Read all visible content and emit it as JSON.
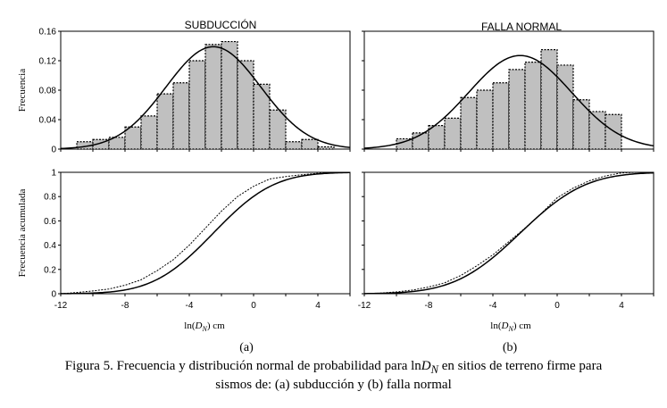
{
  "chart_data": [
    {
      "type": "bar",
      "panel": "a-top",
      "title": "SUBDUCCIÓN",
      "ylabel": "Frecuencia",
      "xlim": [
        -12,
        6
      ],
      "ylim": [
        0,
        0.16
      ],
      "yticks": [
        "0",
        "0.04",
        "0.08",
        "0.12",
        "0.16"
      ],
      "bin_left_edges": [
        -11,
        -10,
        -9,
        -8,
        -7,
        -6,
        -5,
        -4,
        -3,
        -2,
        -1,
        0,
        1,
        2,
        3,
        4
      ],
      "bin_width": 1,
      "values": [
        0.01,
        0.013,
        0.016,
        0.03,
        0.045,
        0.075,
        0.09,
        0.12,
        0.142,
        0.146,
        0.12,
        0.088,
        0.053,
        0.01,
        0.013,
        0.003
      ],
      "normal_curve": {
        "mean": -2.5,
        "sd": 2.95,
        "peak": 0.139
      }
    },
    {
      "type": "bar",
      "panel": "b-top",
      "title": "FALLA NORMAL",
      "xlim": [
        -12,
        6
      ],
      "ylim": [
        0,
        0.16
      ],
      "bin_left_edges": [
        -10,
        -9,
        -8,
        -7,
        -6,
        -5,
        -4,
        -3,
        -2,
        -1,
        0,
        1,
        2,
        3
      ],
      "bin_width": 1,
      "values": [
        0.014,
        0.022,
        0.032,
        0.042,
        0.07,
        0.08,
        0.09,
        0.108,
        0.118,
        0.135,
        0.114,
        0.067,
        0.051,
        0.047
      ],
      "normal_curve": {
        "mean": -2.3,
        "sd": 3.2,
        "peak": 0.127
      }
    },
    {
      "type": "line",
      "panel": "a-bottom",
      "ylabel": "Frecuencia acumulada",
      "xlabel_prefix": "ln(",
      "xlabel_var": "D",
      "xlabel_sub": "N",
      "xlabel_suffix": ")  cm",
      "xlim": [
        -12,
        6
      ],
      "ylim": [
        0,
        1
      ],
      "xticks": [
        "-12",
        "-8",
        "-4",
        "0",
        "4"
      ],
      "yticks": [
        "0",
        "0.2",
        "0.4",
        "0.6",
        "0.8",
        "1"
      ],
      "normal_cdf": {
        "mean": -2.5,
        "sd": 2.95
      },
      "empirical": {
        "x": [
          -12,
          -11,
          -10,
          -9,
          -8,
          -7,
          -6,
          -5,
          -4,
          -3,
          -2,
          -1,
          0,
          1,
          2,
          3,
          4,
          5,
          6
        ],
        "y": [
          0,
          0.01,
          0.023,
          0.039,
          0.07,
          0.115,
          0.19,
          0.28,
          0.4,
          0.54,
          0.68,
          0.8,
          0.885,
          0.945,
          0.965,
          0.98,
          0.992,
          0.998,
          1.0
        ]
      }
    },
    {
      "type": "line",
      "panel": "b-bottom",
      "xlabel_prefix": "ln(",
      "xlabel_var": "D",
      "xlabel_sub": "N",
      "xlabel_suffix": ")  cm",
      "xlim": [
        -12,
        6
      ],
      "ylim": [
        0,
        1
      ],
      "xticks": [
        "-12",
        "-8",
        "-4",
        "0",
        "4"
      ],
      "normal_cdf": {
        "mean": -2.3,
        "sd": 3.2
      },
      "empirical": {
        "x": [
          -12,
          -11,
          -10,
          -9,
          -8,
          -7,
          -6,
          -5,
          -4,
          -3,
          -2,
          -1,
          0,
          1,
          2,
          3,
          4,
          5,
          6
        ],
        "y": [
          0,
          0.005,
          0.015,
          0.03,
          0.055,
          0.09,
          0.15,
          0.23,
          0.32,
          0.43,
          0.54,
          0.66,
          0.79,
          0.87,
          0.93,
          0.97,
          0.995,
          1.0,
          1.0
        ]
      }
    }
  ],
  "sublabels": {
    "a": "(a)",
    "b": "(b)"
  },
  "caption": {
    "prefix": "Figura 5. Frecuencia y distribución normal de probabilidad para ln",
    "var": "D",
    "sub": "N",
    "suffix": " en sitios de terreno firme para",
    "line2": "sismos de: (a) subducción y (b) falla normal"
  },
  "colors": {
    "bar_fill": "#c0c0c0",
    "line": "#000000"
  }
}
